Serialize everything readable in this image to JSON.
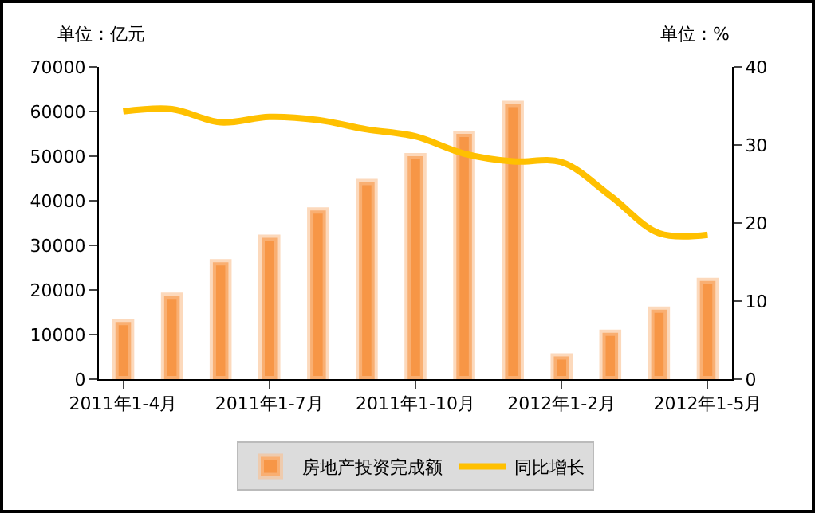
{
  "chart_data": {
    "type": "bar",
    "ylabel": "单位：亿元",
    "y2label": "单位：%",
    "categories": [
      "2011年1-4月",
      null,
      null,
      "2011年1-7月",
      null,
      null,
      "2011年1-10月",
      null,
      null,
      "2012年1-2月",
      null,
      null,
      "2012年1-5月"
    ],
    "series": [
      {
        "name": "房地产投资完成额",
        "color": "#f79646",
        "values": [
          12800,
          18700,
          26200,
          31700,
          37800,
          44200,
          50000,
          55000,
          61700,
          5100,
          10400,
          15600,
          22000
        ]
      },
      {
        "name": "同比增长",
        "type": "line",
        "axis": "y2",
        "color": "#ffc000",
        "values": [
          34.3,
          34.6,
          32.9,
          33.6,
          33.2,
          32.0,
          31.1,
          28.9,
          27.9,
          27.8,
          23.5,
          18.7,
          18.5
        ]
      }
    ],
    "ylim": [
      0,
      70000
    ],
    "yticks": [
      0,
      10000,
      20000,
      30000,
      40000,
      50000,
      60000,
      70000
    ],
    "y2lim": [
      0,
      40
    ],
    "y2ticks": [
      0,
      10,
      20,
      30,
      40
    ],
    "grid": false,
    "legend": "bottom",
    "marker": "none",
    "line_style": "solid"
  }
}
